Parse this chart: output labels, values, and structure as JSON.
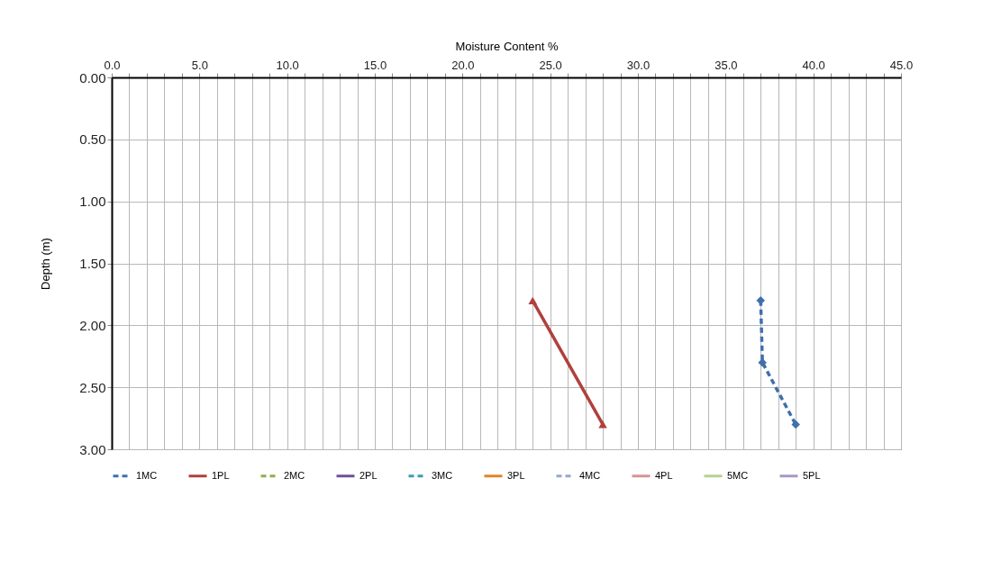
{
  "chart_data": {
    "type": "line",
    "xlabel": "Moisture Content %",
    "ylabel": "Depth (m)",
    "xlim": [
      0,
      45
    ],
    "ylim": [
      3.0,
      0.0
    ],
    "xticks": [
      {
        "value": 0,
        "label": "0.0"
      },
      {
        "value": 1,
        "label": null
      },
      {
        "value": 2,
        "label": null
      },
      {
        "value": 3,
        "label": null
      },
      {
        "value": 4,
        "label": null
      },
      {
        "value": 5,
        "label": "5.0"
      },
      {
        "value": 6,
        "label": null
      },
      {
        "value": 7,
        "label": null
      },
      {
        "value": 8,
        "label": null
      },
      {
        "value": 9,
        "label": null
      },
      {
        "value": 10,
        "label": "10.0"
      },
      {
        "value": 11,
        "label": null
      },
      {
        "value": 12,
        "label": null
      },
      {
        "value": 13,
        "label": null
      },
      {
        "value": 14,
        "label": null
      },
      {
        "value": 15,
        "label": "15.0"
      },
      {
        "value": 16,
        "label": null
      },
      {
        "value": 17,
        "label": null
      },
      {
        "value": 18,
        "label": null
      },
      {
        "value": 19,
        "label": null
      },
      {
        "value": 20,
        "label": "20.0"
      },
      {
        "value": 21,
        "label": null
      },
      {
        "value": 22,
        "label": null
      },
      {
        "value": 23,
        "label": null
      },
      {
        "value": 24,
        "label": null
      },
      {
        "value": 25,
        "label": "25.0"
      },
      {
        "value": 26,
        "label": null
      },
      {
        "value": 27,
        "label": null
      },
      {
        "value": 28,
        "label": null
      },
      {
        "value": 29,
        "label": null
      },
      {
        "value": 30,
        "label": "30.0"
      },
      {
        "value": 31,
        "label": null
      },
      {
        "value": 32,
        "label": null
      },
      {
        "value": 33,
        "label": null
      },
      {
        "value": 34,
        "label": null
      },
      {
        "value": 35,
        "label": "35.0"
      },
      {
        "value": 36,
        "label": null
      },
      {
        "value": 37,
        "label": null
      },
      {
        "value": 38,
        "label": null
      },
      {
        "value": 39,
        "label": null
      },
      {
        "value": 40,
        "label": "40.0"
      },
      {
        "value": 41,
        "label": null
      },
      {
        "value": 42,
        "label": null
      },
      {
        "value": 43,
        "label": null
      },
      {
        "value": 44,
        "label": null
      },
      {
        "value": 45,
        "label": "45.0"
      }
    ],
    "yticks": [
      {
        "value": 0,
        "label": "0.00"
      },
      {
        "value": 0.5,
        "label": "0.50"
      },
      {
        "value": 1,
        "label": "1.00"
      },
      {
        "value": 1.5,
        "label": "1.50"
      },
      {
        "value": 2,
        "label": "2.00"
      },
      {
        "value": 2.5,
        "label": "2.50"
      },
      {
        "value": 3,
        "label": "3.00"
      }
    ],
    "grid": true,
    "legend": "bottom",
    "series": [
      {
        "name": "1MC",
        "color": "#3f6fae",
        "line_style": "dashed",
        "marker": "diamond",
        "x": [
          37.0,
          37.1,
          39.0
        ],
        "values": [
          1.8,
          2.3,
          2.8
        ]
      },
      {
        "name": "1PL",
        "color": "#b0403b",
        "line_style": "solid",
        "marker": "triangle",
        "x": [
          24.0,
          28.0
        ],
        "values": [
          1.8,
          2.8
        ]
      },
      {
        "name": "2MC",
        "color": "#8db04a",
        "line_style": "dashed",
        "marker": "diamond"
      },
      {
        "name": "2PL",
        "color": "#6e4f9b",
        "line_style": "solid",
        "marker": "cross"
      },
      {
        "name": "3MC",
        "color": "#3a9bb2",
        "line_style": "dashed",
        "marker": "star"
      },
      {
        "name": "3PL",
        "color": "#e3832a",
        "line_style": "solid",
        "marker": "circle"
      },
      {
        "name": "4MC",
        "color": "#93a9cf",
        "line_style": "dashed",
        "marker": "diamond"
      },
      {
        "name": "4PL",
        "color": "#d49593",
        "line_style": "solid",
        "marker": "none"
      },
      {
        "name": "5MC",
        "color": "#b6d18f",
        "line_style": "solid",
        "marker": "none"
      },
      {
        "name": "5PL",
        "color": "#a898c4",
        "line_style": "solid",
        "marker": "cross"
      }
    ]
  }
}
